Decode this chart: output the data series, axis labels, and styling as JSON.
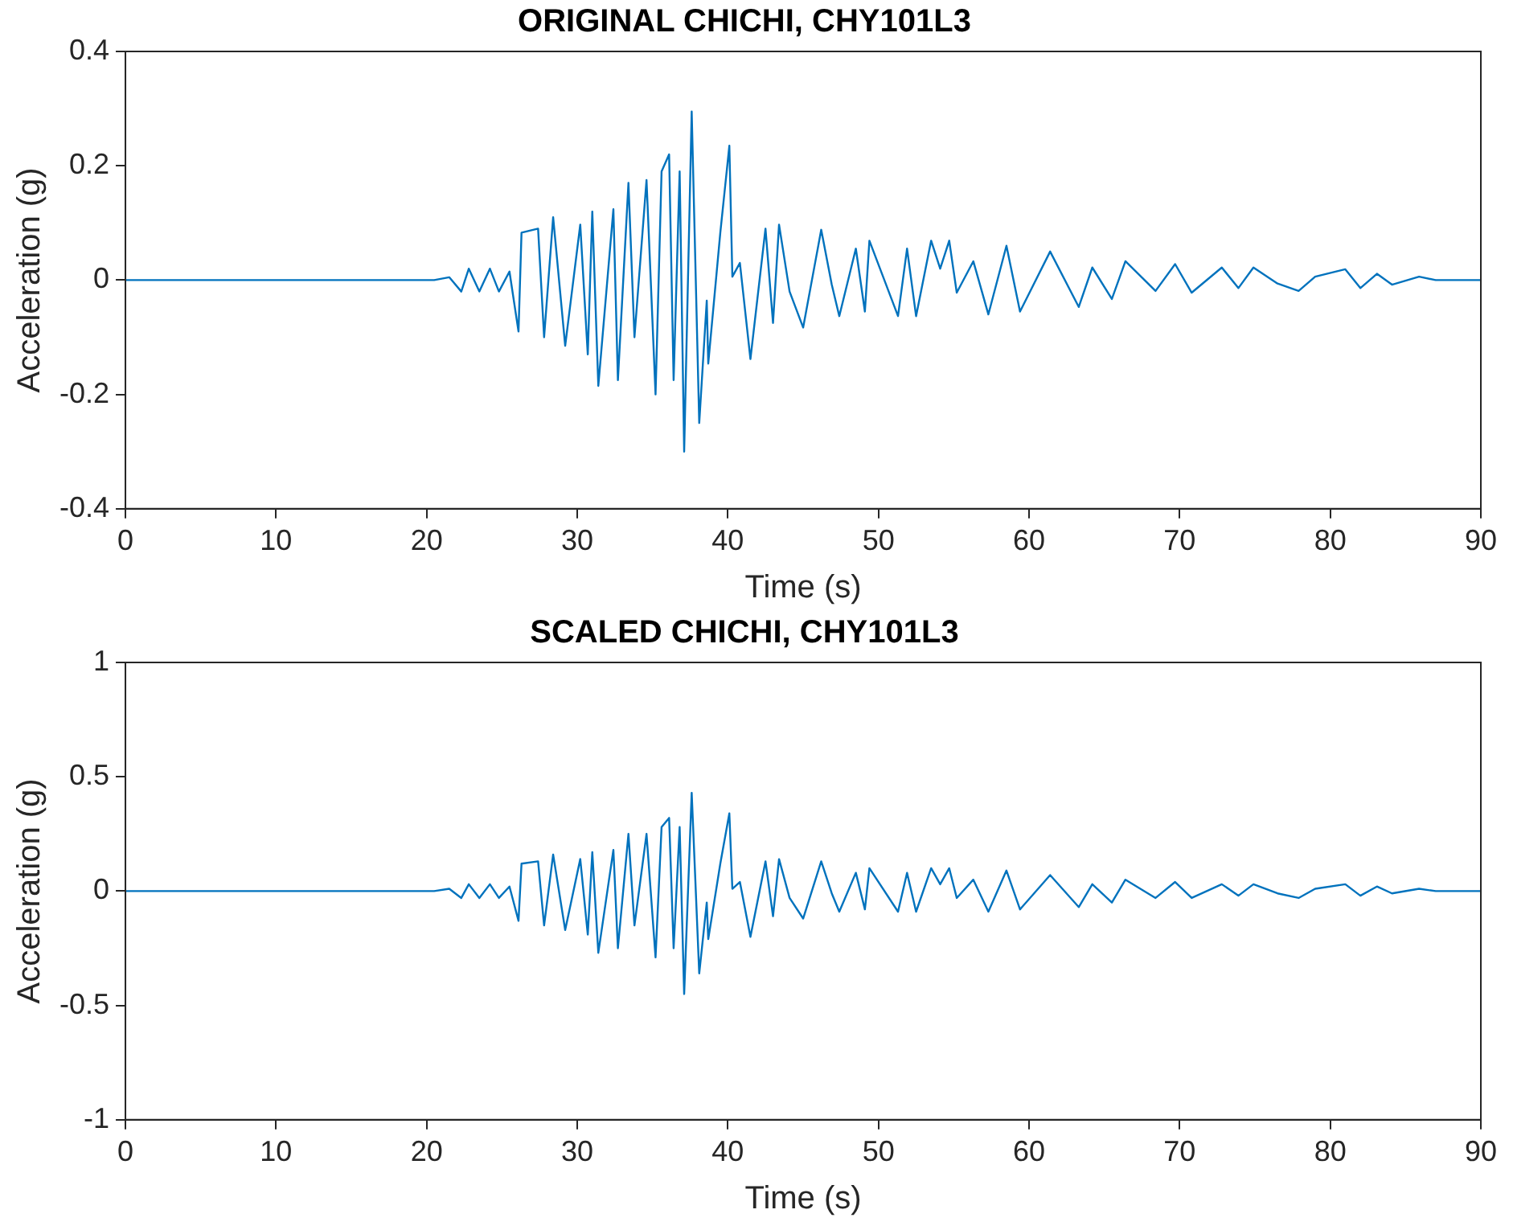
{
  "chart_data": [
    {
      "type": "line",
      "title": "ORIGINAL CHICHI, CHY101L3",
      "xlabel": "Time (s)",
      "ylabel": "Acceleration (g)",
      "xlim": [
        0,
        90
      ],
      "xticks": [
        0,
        10,
        20,
        30,
        40,
        50,
        60,
        70,
        80,
        90
      ],
      "ylim": [
        -0.4,
        0.4
      ],
      "yticks": [
        -0.4,
        -0.2,
        0,
        0.2,
        0.4
      ],
      "legend": false,
      "marker": "none",
      "line_style": "solid",
      "series": [
        {
          "color": "#0072bd",
          "x": [
            0,
            20.5,
            21.5,
            22.3,
            22.8,
            23.5,
            24.2,
            24.8,
            25.5,
            26.1,
            26.3,
            27.4,
            27.8,
            28.4,
            29.2,
            30.2,
            30.7,
            31.0,
            31.4,
            32.4,
            32.7,
            33.4,
            33.8,
            34.6,
            35.2,
            35.6,
            36.1,
            36.4,
            36.8,
            37.1,
            37.6,
            38.1,
            38.6,
            38.7,
            39.5,
            40.1,
            40.3,
            40.8,
            41.5,
            42.5,
            43.0,
            43.4,
            44.1,
            45.0,
            46.2,
            46.9,
            47.4,
            48.5,
            49.1,
            49.4,
            51.3,
            51.9,
            52.5,
            53.5,
            54.1,
            54.7,
            55.2,
            56.3,
            57.3,
            58.5,
            59.4,
            61.4,
            63.3,
            64.2,
            65.5,
            66.4,
            68.4,
            69.7,
            70.8,
            72.8,
            73.9,
            74.9,
            76.5,
            77.9,
            79.0,
            81.0,
            82.0,
            83.1,
            84.1,
            85.9,
            87,
            90
          ],
          "values": [
            0,
            0,
            0.005,
            -0.02,
            0.02,
            -0.02,
            0.02,
            -0.02,
            0.015,
            -0.09,
            0.083,
            0.09,
            -0.1,
            0.11,
            -0.115,
            0.097,
            -0.13,
            0.12,
            -0.185,
            0.124,
            -0.175,
            0.17,
            -0.1,
            0.175,
            -0.2,
            0.19,
            0.22,
            -0.175,
            0.19,
            -0.3,
            0.295,
            -0.25,
            -0.036,
            -0.146,
            0.083,
            0.235,
            0.006,
            0.03,
            -0.138,
            0.09,
            -0.075,
            0.097,
            -0.02,
            -0.083,
            0.088,
            -0.008,
            -0.063,
            0.055,
            -0.055,
            0.069,
            -0.063,
            0.055,
            -0.063,
            0.069,
            0.02,
            0.069,
            -0.022,
            0.033,
            -0.06,
            0.06,
            -0.055,
            0.05,
            -0.047,
            0.022,
            -0.033,
            0.033,
            -0.019,
            0.028,
            -0.022,
            0.022,
            -0.014,
            0.022,
            -0.006,
            -0.019,
            0.006,
            0.019,
            -0.014,
            0.011,
            -0.008,
            0.006,
            0,
            0
          ]
        }
      ]
    },
    {
      "type": "line",
      "title": "SCALED CHICHI, CHY101L3",
      "xlabel": "Time (s)",
      "ylabel": "Acceleration (g)",
      "xlim": [
        0,
        90
      ],
      "xticks": [
        0,
        10,
        20,
        30,
        40,
        50,
        60,
        70,
        80,
        90
      ],
      "ylim": [
        -1,
        1
      ],
      "yticks": [
        -1,
        -0.5,
        0,
        0.5,
        1
      ],
      "legend": false,
      "marker": "none",
      "line_style": "solid",
      "series": [
        {
          "color": "#0072bd",
          "x": [
            0,
            20.5,
            21.5,
            22.3,
            22.8,
            23.5,
            24.2,
            24.8,
            25.5,
            26.1,
            26.3,
            27.4,
            27.8,
            28.4,
            29.2,
            30.2,
            30.7,
            31.0,
            31.4,
            32.4,
            32.7,
            33.4,
            33.8,
            34.6,
            35.2,
            35.6,
            36.1,
            36.4,
            36.8,
            37.1,
            37.6,
            38.1,
            38.6,
            38.7,
            39.5,
            40.1,
            40.3,
            40.8,
            41.5,
            42.5,
            43.0,
            43.4,
            44.1,
            45.0,
            46.2,
            46.9,
            47.4,
            48.5,
            49.1,
            49.4,
            51.3,
            51.9,
            52.5,
            53.5,
            54.1,
            54.7,
            55.2,
            56.3,
            57.3,
            58.5,
            59.4,
            61.4,
            63.3,
            64.2,
            65.5,
            66.4,
            68.4,
            69.7,
            70.8,
            72.8,
            73.9,
            74.9,
            76.5,
            77.9,
            79.0,
            81.0,
            82.0,
            83.1,
            84.1,
            85.9,
            87,
            90
          ],
          "values": [
            0,
            0,
            0.01,
            -0.03,
            0.03,
            -0.03,
            0.03,
            -0.03,
            0.02,
            -0.13,
            0.12,
            0.13,
            -0.15,
            0.16,
            -0.17,
            0.14,
            -0.19,
            0.17,
            -0.27,
            0.18,
            -0.25,
            0.25,
            -0.15,
            0.25,
            -0.29,
            0.28,
            0.32,
            -0.25,
            0.28,
            -0.45,
            0.43,
            -0.36,
            -0.05,
            -0.21,
            0.12,
            0.34,
            0.01,
            0.04,
            -0.2,
            0.13,
            -0.11,
            0.14,
            -0.03,
            -0.12,
            0.13,
            -0.01,
            -0.09,
            0.08,
            -0.08,
            0.1,
            -0.09,
            0.08,
            -0.09,
            0.1,
            0.03,
            0.1,
            -0.03,
            0.05,
            -0.09,
            0.09,
            -0.08,
            0.07,
            -0.07,
            0.03,
            -0.05,
            0.05,
            -0.03,
            0.04,
            -0.03,
            0.03,
            -0.02,
            0.03,
            -0.01,
            -0.03,
            0.01,
            0.03,
            -0.02,
            0.02,
            -0.01,
            0.01,
            0,
            0
          ]
        }
      ]
    }
  ]
}
